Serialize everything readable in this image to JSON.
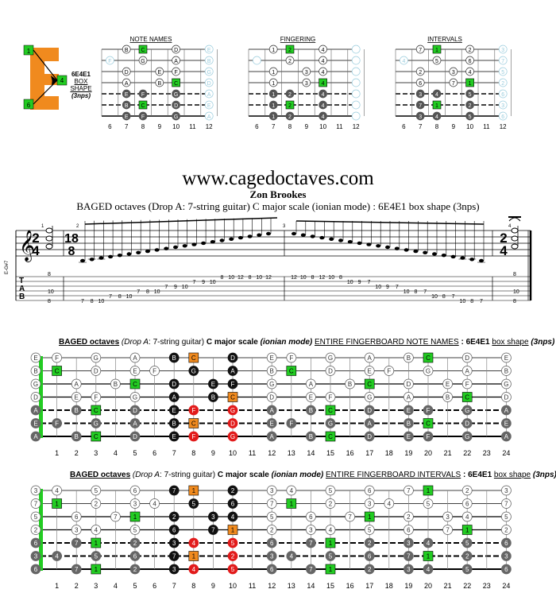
{
  "shape": {
    "letter": "E",
    "badge_1": "1",
    "badge_4": "4",
    "badge_6": "6",
    "code": "6E4E1",
    "box": "BOX",
    "shape": "SHAPE",
    "nps": "(3nps)"
  },
  "mini_diagrams": {
    "note_names_title": "NOTE NAMES",
    "fingering_title": "FINGERING",
    "intervals_title": "INTERVALS",
    "fret_numbers": [
      "6",
      "7",
      "8",
      "9",
      "10",
      "11",
      "12"
    ]
  },
  "header": {
    "site": "www.cagedoctaves.com",
    "author": "Zon Brookes",
    "title": "BAGED octaves (Drop A: 7-string guitar) C major scale (ionian mode) : 6E4E1 box shape (3nps)"
  },
  "notation": {
    "time_sig_start": [
      "2",
      "4"
    ],
    "time_sig_mid": [
      "18",
      "8"
    ],
    "time_sig_end": [
      "2",
      "4"
    ],
    "tuning_label": "E-G#7",
    "tab_letters": [
      "T",
      "A",
      "B"
    ],
    "measure_numbers": [
      "1",
      "2",
      "3",
      "4"
    ],
    "tab_first_chord": [
      "8",
      "10",
      "8"
    ],
    "tab_last_chord": [
      "8",
      "10",
      "8"
    ],
    "tab_run_up": [
      [
        "7",
        "8",
        "10"
      ],
      [
        "7",
        "8",
        "10"
      ],
      [
        "7",
        "8",
        "10"
      ],
      [
        "7",
        "9",
        "10"
      ],
      [
        "7",
        "9",
        "10"
      ],
      [
        "8",
        "10",
        "12"
      ],
      [
        "8",
        "10",
        "12"
      ]
    ],
    "tab_run_down": [
      [
        "12",
        "10",
        "8"
      ],
      [
        "12",
        "10",
        "8"
      ],
      [
        "10",
        "9",
        "7"
      ],
      [
        "10",
        "9",
        "7"
      ],
      [
        "10",
        "8",
        "7"
      ],
      [
        "10",
        "8",
        "7"
      ],
      [
        "10",
        "8",
        "7"
      ]
    ]
  },
  "board_notes": {
    "heading_bold": "BAGED octaves",
    "heading_drop": "(Drop A",
    "heading_guitar": ": 7-string guitar)",
    "heading_scale": "C major scale",
    "heading_mode": "(ionian mode)",
    "heading_rest": "ENTIRE FINGERBOARD NOTE NAMES",
    "heading_shape": ": 6E4E1",
    "heading_box": "box shape",
    "heading_nps": "(3nps)"
  },
  "board_intervals": {
    "heading_bold": "BAGED octaves",
    "heading_drop": "(Drop A",
    "heading_guitar": ": 7-string guitar)",
    "heading_scale": "C major scale",
    "heading_mode": "(ionian mode)",
    "heading_rest": "ENTIRE FINGERBOARD INTERVALS",
    "heading_shape": ": 6E4E1",
    "heading_box": "box shape",
    "heading_nps": "(3nps)"
  },
  "fret_numbers": [
    "1",
    "2",
    "3",
    "4",
    "5",
    "6",
    "7",
    "8",
    "9",
    "10",
    "11",
    "12",
    "13",
    "14",
    "15",
    "16",
    "17",
    "18",
    "19",
    "20",
    "21",
    "22",
    "23",
    "24"
  ],
  "colors": {
    "root": "#22cc22",
    "shape": "#f08a1e",
    "highlight": "#e21b1b",
    "dark": "#111111",
    "grey": "#666666"
  }
}
